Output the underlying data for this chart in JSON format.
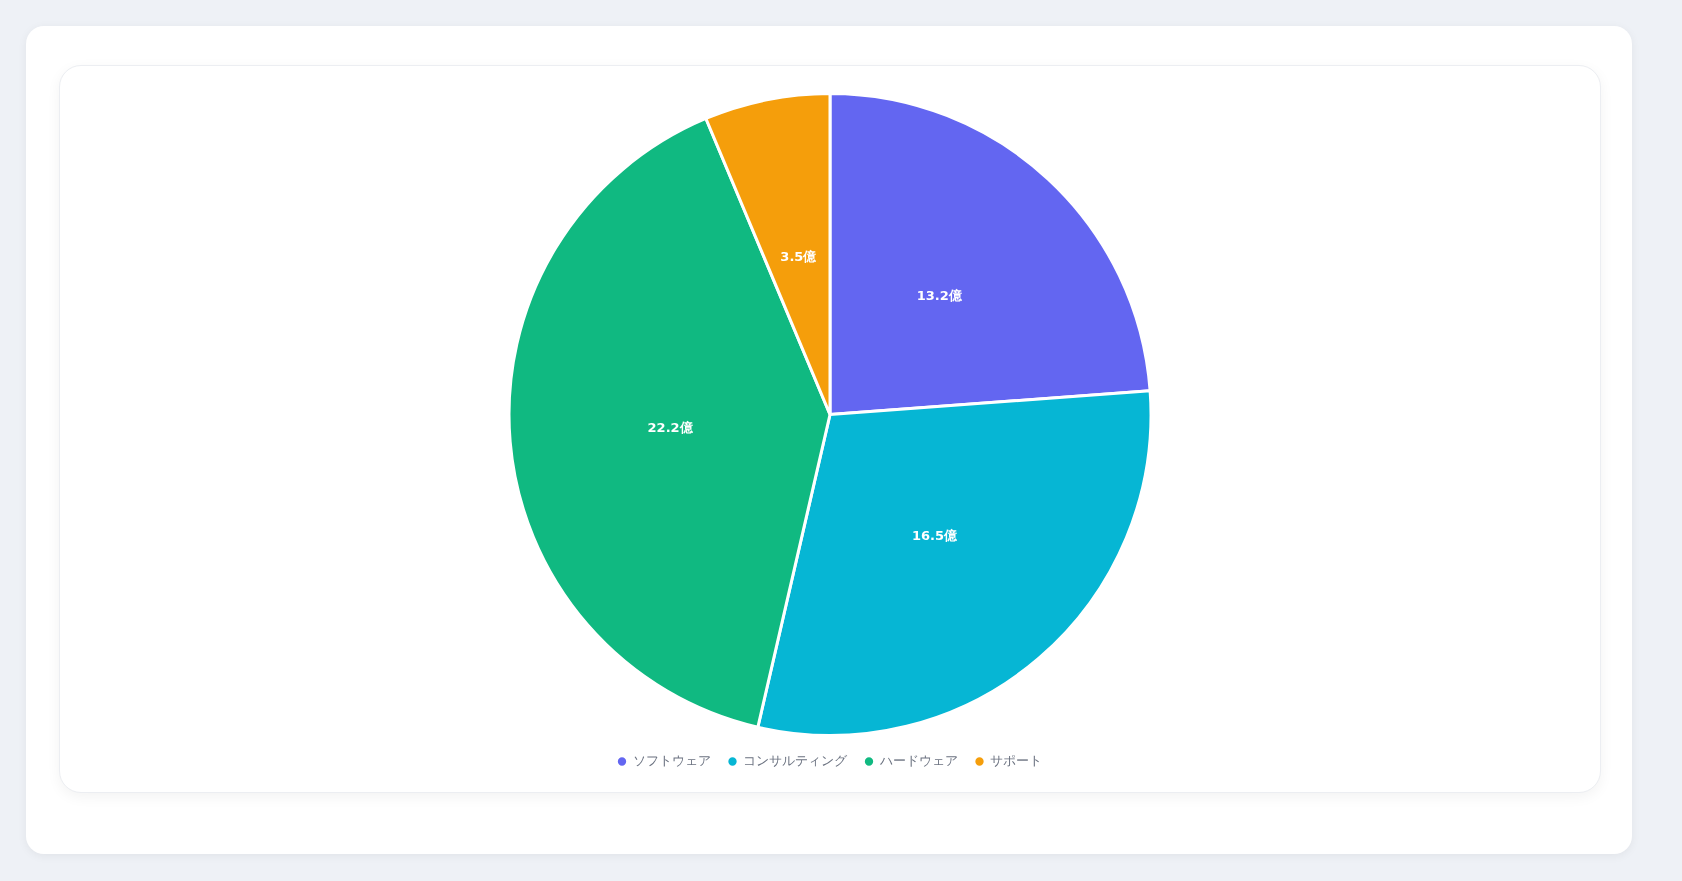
{
  "chart_data": {
    "type": "pie",
    "categories": [
      "ソフトウェア",
      "コンサルティング",
      "ハードウェア",
      "サポート"
    ],
    "values": [
      13.2,
      16.5,
      22.2,
      3.5
    ],
    "colors": [
      "#6366f1",
      "#06b6d4",
      "#10b981",
      "#f59e0b"
    ],
    "value_labels": [
      "13.2億",
      "16.5億",
      "22.2億",
      "3.5億"
    ],
    "legend": "bottom"
  }
}
